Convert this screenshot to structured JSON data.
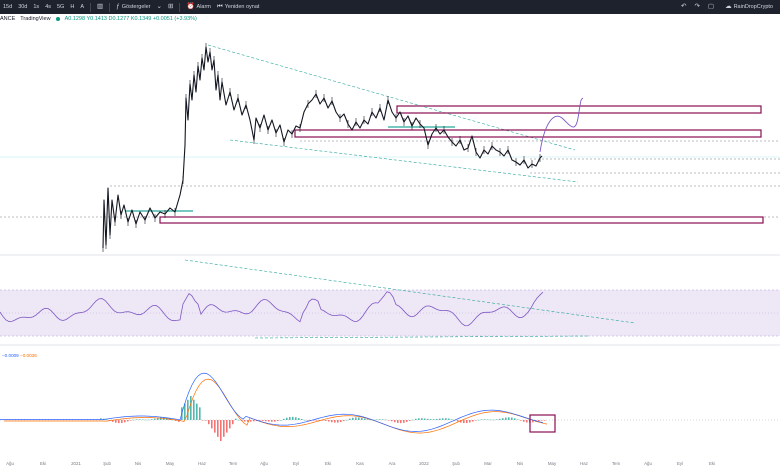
{
  "topbar": {
    "timeframes": [
      "15d",
      "30d",
      "1s",
      "4s",
      "5G",
      "H",
      "A"
    ],
    "indicators_label": "Göstergeler",
    "alarm_label": "Alarm",
    "replay_label": "Yeniden oynat",
    "user_label": "RainDropCrypto"
  },
  "legend": {
    "symbol": "ANCE",
    "source": "TradingView",
    "ohlc": "A0.1298  Y0.1413  D0.1277  K0.1349  +0.0051 (+3.93%)"
  },
  "macd": {
    "macd_value": "−0.0009",
    "signal_value": "−0.0036",
    "colors": {
      "macd": "#2962ff",
      "signal": "#ff6d00",
      "hist_pos": "#26a69a",
      "hist_neg": "#ef5350"
    }
  },
  "rsi": {
    "colors": {
      "line": "#7e57c2",
      "band": "#ede7f6"
    }
  },
  "drawings": {
    "zone_color": "#880e4f",
    "trend_color": "#26a69a"
  },
  "xaxis_labels": [
    "Ağu",
    "Eki",
    "2021",
    "Şub",
    "Nis",
    "May",
    "Haz",
    "Tem",
    "Ağu",
    "Eyl",
    "Eki",
    "Kas",
    "Ara",
    "2022",
    "Şub",
    "Mar",
    "Nis",
    "May",
    "Haz",
    "Tem",
    "Ağu",
    "Eyl",
    "Eki"
  ]
}
